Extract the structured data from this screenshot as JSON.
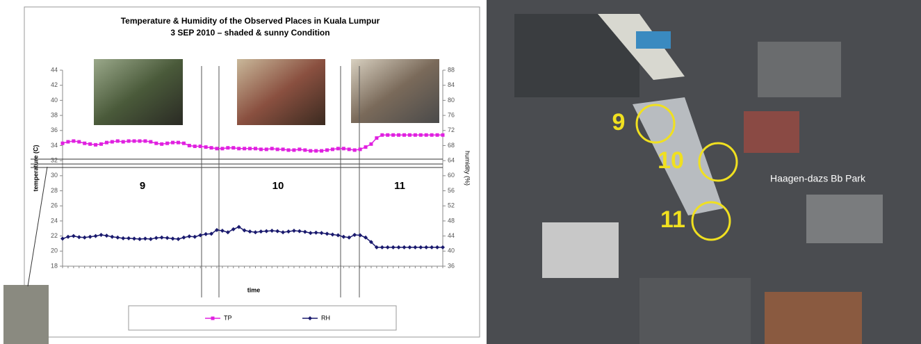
{
  "chart_data": {
    "type": "line",
    "title": "Temperature & Humidity of the Observed Places in Kuala Lumpur",
    "subtitle": "3 SEP 2010 – shaded & sunny Condition",
    "ylabel": "temperature (C)",
    "y2label": "humidity (%)",
    "xlabel": "time",
    "annotations": [
      "9",
      "10",
      "11"
    ],
    "categories": [
      null,
      null,
      null,
      null,
      null,
      null,
      null,
      null,
      null,
      null,
      null,
      null,
      null,
      null,
      null,
      null,
      null,
      null,
      null,
      null,
      null,
      null,
      null,
      null,
      null,
      null,
      null,
      null,
      null,
      null,
      null,
      null,
      null,
      null,
      null,
      null,
      null,
      null,
      null,
      null,
      null,
      null,
      null,
      null,
      null,
      null,
      null,
      null,
      null,
      null,
      null,
      null,
      null,
      null,
      null,
      null,
      null,
      null,
      null,
      null,
      null,
      null,
      null,
      null,
      null,
      null,
      null,
      null,
      null,
      null
    ],
    "series": [
      {
        "name": "TP",
        "color": "#e020e0",
        "marker": "square",
        "values": [
          34.3,
          34.5,
          34.6,
          34.5,
          34.3,
          34.2,
          34.1,
          34.2,
          34.4,
          34.5,
          34.6,
          34.5,
          34.6,
          34.6,
          34.6,
          34.6,
          34.5,
          34.3,
          34.2,
          34.3,
          34.4,
          34.4,
          34.3,
          34.0,
          33.9,
          33.9,
          33.8,
          33.7,
          33.6,
          33.6,
          33.7,
          33.7,
          33.6,
          33.6,
          33.6,
          33.6,
          33.5,
          33.5,
          33.6,
          33.5,
          33.5,
          33.4,
          33.4,
          33.5,
          33.4,
          33.3,
          33.3,
          33.3,
          33.4,
          33.5,
          33.6,
          33.6,
          33.5,
          33.4,
          33.5,
          33.8,
          34.2,
          35.0,
          35.4,
          35.4,
          35.4,
          35.4,
          35.4,
          35.4,
          35.4,
          35.4,
          35.4,
          35.4,
          35.4,
          35.4
        ]
      },
      {
        "name": "RH",
        "color": "#1a1a6e",
        "marker": "diamond",
        "axis": "y2",
        "values": [
          43.3,
          43.8,
          44.0,
          43.7,
          43.6,
          43.8,
          44.0,
          44.3,
          44.1,
          43.8,
          43.6,
          43.4,
          43.4,
          43.3,
          43.2,
          43.3,
          43.2,
          43.5,
          43.6,
          43.5,
          43.3,
          43.2,
          43.6,
          43.9,
          43.8,
          44.2,
          44.5,
          44.6,
          45.6,
          45.4,
          45.0,
          45.8,
          46.4,
          45.5,
          45.2,
          45.0,
          45.2,
          45.3,
          45.4,
          45.3,
          45.0,
          45.2,
          45.4,
          45.3,
          45.1,
          44.8,
          44.9,
          44.8,
          44.6,
          44.4,
          44.2,
          43.8,
          43.6,
          44.3,
          44.2,
          43.6,
          42.4,
          41.0,
          41.0,
          41.0,
          41.0,
          41.0,
          41.0,
          41.0,
          41.0,
          41.0,
          41.0,
          41.0,
          41.0,
          41.0
        ]
      }
    ],
    "ylim": [
      18,
      44
    ],
    "yticks": [
      18,
      20,
      22,
      24,
      26,
      28,
      30,
      32,
      34,
      36,
      38,
      40,
      42,
      44
    ],
    "y2lim": [
      36,
      88
    ],
    "y2ticks": [
      36,
      40,
      44,
      48,
      52,
      56,
      60,
      64,
      68,
      72,
      76,
      80,
      84,
      88
    ],
    "grid": false,
    "legend": "bottom"
  },
  "map": {
    "labels": [
      "9",
      "10",
      "11"
    ],
    "place": "Haagen-dazs Bb Park"
  }
}
